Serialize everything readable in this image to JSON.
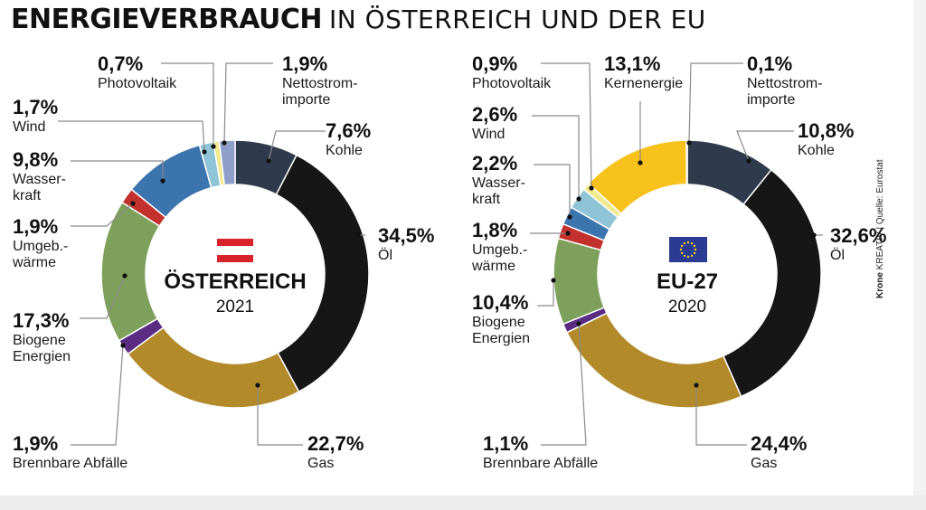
{
  "title": {
    "bold": "ENERGIEVERBRAUCH",
    "rest": "IN ÖSTERREICH UND DER EU"
  },
  "source": {
    "brand": "Krone",
    "brand_suffix": "KREATIV",
    "separator": "|",
    "credit": "Quelle: Eurostat"
  },
  "colors": {
    "Kohle": "#2f3b4c",
    "Öl": "#161616",
    "Gas": "#b38a2a",
    "Brennbare Abfälle": "#5a2d82",
    "Biogene Energien": "#7da05a",
    "Umgebungswärme": "#c2312d",
    "Wasserkraft": "#3c74ad",
    "Wind": "#8fc3d6",
    "Photovoltaik": "#f1ea8c",
    "Nettostromimporte": "#8d9fc9",
    "Kernenergie": "#f7c21c"
  },
  "chart_data": [
    {
      "type": "pie",
      "title": "ÖSTERREICH",
      "subtitle": "2021",
      "emblem": "austria-flag-icon",
      "slices": [
        {
          "key": "Kohle",
          "label": "Kohle",
          "value": 7.6,
          "display": "7,6%"
        },
        {
          "key": "Öl",
          "label": "Öl",
          "value": 34.5,
          "display": "34,5%"
        },
        {
          "key": "Gas",
          "label": "Gas",
          "value": 22.7,
          "display": "22,7%"
        },
        {
          "key": "Brennbare Abfälle",
          "label": "Brennbare Abfälle",
          "value": 1.9,
          "display": "1,9%"
        },
        {
          "key": "Biogene Energien",
          "label": "Biogene\nEnergien",
          "value": 17.3,
          "display": "17,3%"
        },
        {
          "key": "Umgebungswärme",
          "label": "Umgeb.-\nwärme",
          "value": 1.9,
          "display": "1,9%"
        },
        {
          "key": "Wasserkraft",
          "label": "Wasser-\nkraft",
          "value": 9.8,
          "display": "9,8%"
        },
        {
          "key": "Wind",
          "label": "Wind",
          "value": 1.7,
          "display": "1,7%"
        },
        {
          "key": "Photovoltaik",
          "label": "Photovoltaik",
          "value": 0.7,
          "display": "0,7%"
        },
        {
          "key": "Nettostromimporte",
          "label": "Nettostrom-\nimporte",
          "value": 1.9,
          "display": "1,9%"
        }
      ]
    },
    {
      "type": "pie",
      "title": "EU-27",
      "subtitle": "2020",
      "emblem": "eu-flag-icon",
      "slices": [
        {
          "key": "Kohle",
          "label": "Kohle",
          "value": 10.8,
          "display": "10,8%"
        },
        {
          "key": "Öl",
          "label": "Öl",
          "value": 32.6,
          "display": "32,6%"
        },
        {
          "key": "Gas",
          "label": "Gas",
          "value": 24.4,
          "display": "24,4%"
        },
        {
          "key": "Brennbare Abfälle",
          "label": "Brennbare Abfälle",
          "value": 1.1,
          "display": "1,1%"
        },
        {
          "key": "Biogene Energien",
          "label": "Biogene\nEnergien",
          "value": 10.4,
          "display": "10,4%"
        },
        {
          "key": "Umgebungswärme",
          "label": "Umgeb.-\nwärme",
          "value": 1.8,
          "display": "1,8%"
        },
        {
          "key": "Wasserkraft",
          "label": "Wasser-\nkraft",
          "value": 2.2,
          "display": "2,2%"
        },
        {
          "key": "Wind",
          "label": "Wind",
          "value": 2.6,
          "display": "2,6%"
        },
        {
          "key": "Photovoltaik",
          "label": "Photovoltaik",
          "value": 0.9,
          "display": "0,9%"
        },
        {
          "key": "Kernenergie",
          "label": "Kernenergie",
          "value": 13.1,
          "display": "13,1%"
        },
        {
          "key": "Nettostromimporte",
          "label": "Nettostrom-\nimporte",
          "value": 0.1,
          "display": "0,1%"
        }
      ]
    }
  ]
}
